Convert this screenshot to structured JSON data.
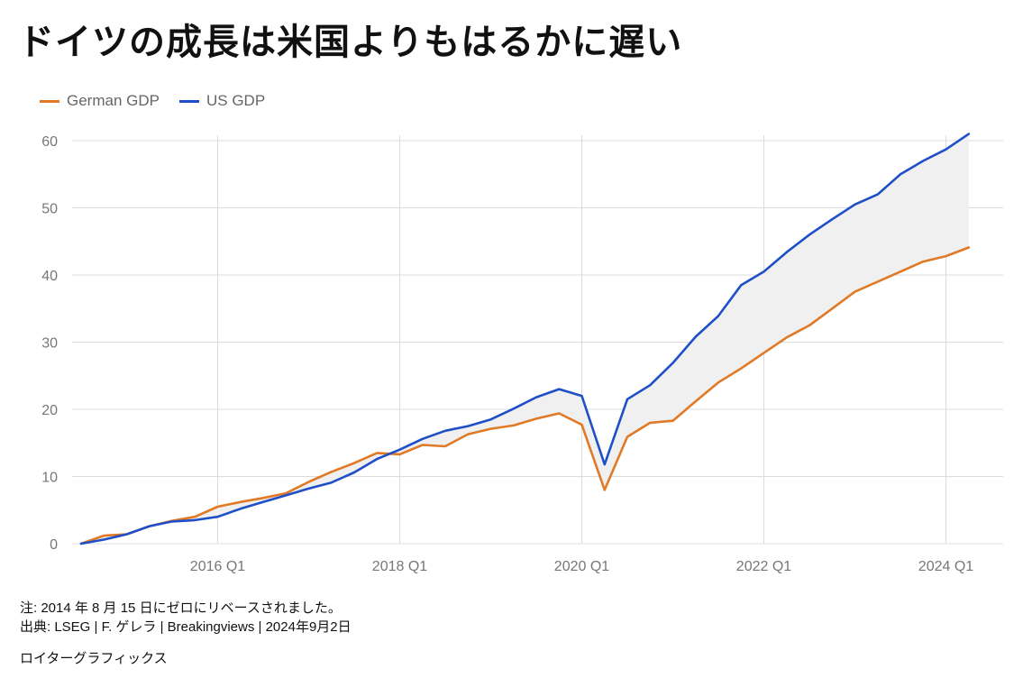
{
  "title": "ドイツの成長は米国よりもはるかに遅い",
  "legend": [
    {
      "label": "German GDP",
      "color": "#e07a26"
    },
    {
      "label": "US GDP",
      "color": "#1f4fc8"
    }
  ],
  "footer": {
    "note": "注: 2014 年 8 月 15 日にゼロにリベースされました。",
    "source": "出典: LSEG | F. ゲレラ | Breakingviews | 2024年9月2日",
    "credit": "ロイターグラフィックス"
  },
  "chart_data": {
    "type": "line",
    "ylim": [
      0,
      60
    ],
    "yticks": [
      0,
      10,
      20,
      30,
      40,
      50,
      60
    ],
    "xticks": [
      {
        "label": "2016 Q1",
        "x": 2016.0
      },
      {
        "label": "2018 Q1",
        "x": 2018.0
      },
      {
        "label": "2020 Q1",
        "x": 2020.0
      },
      {
        "label": "2022 Q1",
        "x": 2022.0
      },
      {
        "label": "2024 Q1",
        "x": 2024.0
      }
    ],
    "grid": true,
    "fill_between_series": true,
    "x": [
      2014.5,
      2014.75,
      2015.0,
      2015.25,
      2015.5,
      2015.75,
      2016.0,
      2016.25,
      2016.5,
      2016.75,
      2017.0,
      2017.25,
      2017.5,
      2017.75,
      2018.0,
      2018.25,
      2018.5,
      2018.75,
      2019.0,
      2019.25,
      2019.5,
      2019.75,
      2020.0,
      2020.25,
      2020.5,
      2020.75,
      2021.0,
      2021.25,
      2021.5,
      2021.75,
      2022.0,
      2022.25,
      2022.5,
      2022.75,
      2023.0,
      2023.25,
      2023.5,
      2023.75,
      2024.0,
      2024.25
    ],
    "series": [
      {
        "name": "German GDP",
        "color": "#e07a26",
        "values": [
          0,
          1.2,
          1.4,
          2.6,
          3.4,
          4.0,
          5.5,
          6.2,
          6.8,
          7.5,
          9.2,
          10.7,
          12.0,
          13.5,
          13.3,
          14.7,
          14.5,
          16.3,
          17.1,
          17.6,
          18.6,
          19.4,
          17.7,
          8.0,
          15.9,
          18.0,
          18.3,
          21.2,
          24.0,
          26.1,
          28.4,
          30.7,
          32.5,
          35.0,
          37.5,
          39.0,
          40.5,
          42.0,
          42.8,
          44.1
        ]
      },
      {
        "name": "US GDP",
        "color": "#1f4fc8",
        "values": [
          0,
          0.6,
          1.4,
          2.6,
          3.3,
          3.5,
          4.0,
          5.2,
          6.2,
          7.2,
          8.2,
          9.1,
          10.6,
          12.6,
          14.0,
          15.6,
          16.8,
          17.5,
          18.5,
          20.1,
          21.8,
          23.0,
          22.0,
          11.8,
          21.5,
          23.6,
          26.9,
          30.8,
          33.9,
          38.5,
          40.5,
          43.4,
          46.0,
          48.3,
          50.5,
          52.0,
          55.0,
          57.0,
          58.7,
          61.0
        ]
      }
    ]
  }
}
